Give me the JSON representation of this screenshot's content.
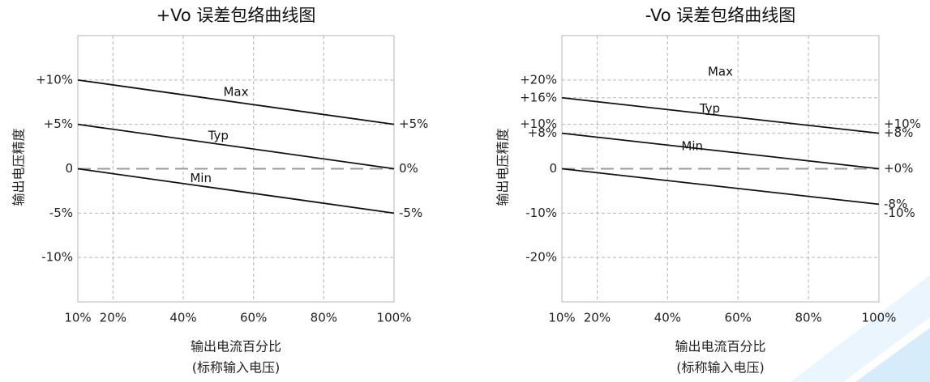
{
  "colors": {
    "line": "#111111",
    "grid": "#b5b5b5",
    "zero": "#9a9a9a",
    "frame": "#b5b5b5",
    "watermark": "#cfe6f7"
  },
  "chart_data": [
    {
      "type": "line",
      "title": "+Vo 误差包络曲线图",
      "ylabel": "输出电压精度",
      "xlabel": "输出电流百分比",
      "xlabel2": "(标称输入电压)",
      "xlim": [
        10,
        100
      ],
      "ylim": [
        -15,
        15
      ],
      "x_ticks": [
        10,
        20,
        40,
        60,
        80,
        100
      ],
      "x_tick_labels": [
        "10%",
        "20%",
        "40%",
        "60%",
        "80%",
        "100%"
      ],
      "y_ticks": [
        10,
        5,
        0,
        -5,
        -10
      ],
      "y_tick_labels": [
        "+10%",
        "+5%",
        "0",
        "-5%",
        "-10%"
      ],
      "right_labels": [
        {
          "y": 5,
          "text": "+5%"
        },
        {
          "y": 0,
          "text": "0%"
        },
        {
          "y": -5,
          "text": "-5%"
        }
      ],
      "series": [
        {
          "name": "Max",
          "x": [
            10,
            100
          ],
          "y": [
            10,
            5
          ],
          "label_at": [
            55,
            8.6
          ]
        },
        {
          "name": "Typ",
          "x": [
            10,
            100
          ],
          "y": [
            5,
            0
          ],
          "label_at": [
            50,
            3.7
          ]
        },
        {
          "name": "Min",
          "x": [
            10,
            100
          ],
          "y": [
            0,
            -5
          ],
          "label_at": [
            45,
            -1.1
          ]
        }
      ]
    },
    {
      "type": "line",
      "title": "-Vo 误差包络曲线图",
      "ylabel": "输出电压精度",
      "xlabel": "输出电流百分比",
      "xlabel2": "(标称输入电压)",
      "xlim": [
        10,
        100
      ],
      "ylim": [
        -30,
        30
      ],
      "x_ticks": [
        10,
        20,
        40,
        60,
        80,
        100
      ],
      "x_tick_labels": [
        "10%",
        "20%",
        "40%",
        "60%",
        "80%",
        "100%"
      ],
      "y_ticks": [
        20,
        16,
        10,
        8,
        0,
        -10,
        -20
      ],
      "y_tick_labels": [
        "+20%",
        "+16%",
        "+10%",
        "+8%",
        "0",
        "-10%",
        "-20%"
      ],
      "right_labels": [
        {
          "y": 10,
          "text": "+10%"
        },
        {
          "y": 8,
          "text": "+8%"
        },
        {
          "y": 0,
          "text": "+0%"
        },
        {
          "y": -8,
          "text": "-8%"
        },
        {
          "y": -10,
          "text": "-10%"
        }
      ],
      "series": [
        {
          "name": "Max",
          "x": [
            10,
            100
          ],
          "y": [
            16,
            8
          ],
          "label_at": [
            55,
            21.8
          ]
        },
        {
          "name": "Typ",
          "x": [
            10,
            100
          ],
          "y": [
            8,
            0
          ],
          "label_at": [
            52,
            13.5
          ]
        },
        {
          "name": "Min",
          "x": [
            10,
            100
          ],
          "y": [
            0,
            -8
          ],
          "label_at": [
            47,
            5.0
          ]
        }
      ]
    }
  ]
}
